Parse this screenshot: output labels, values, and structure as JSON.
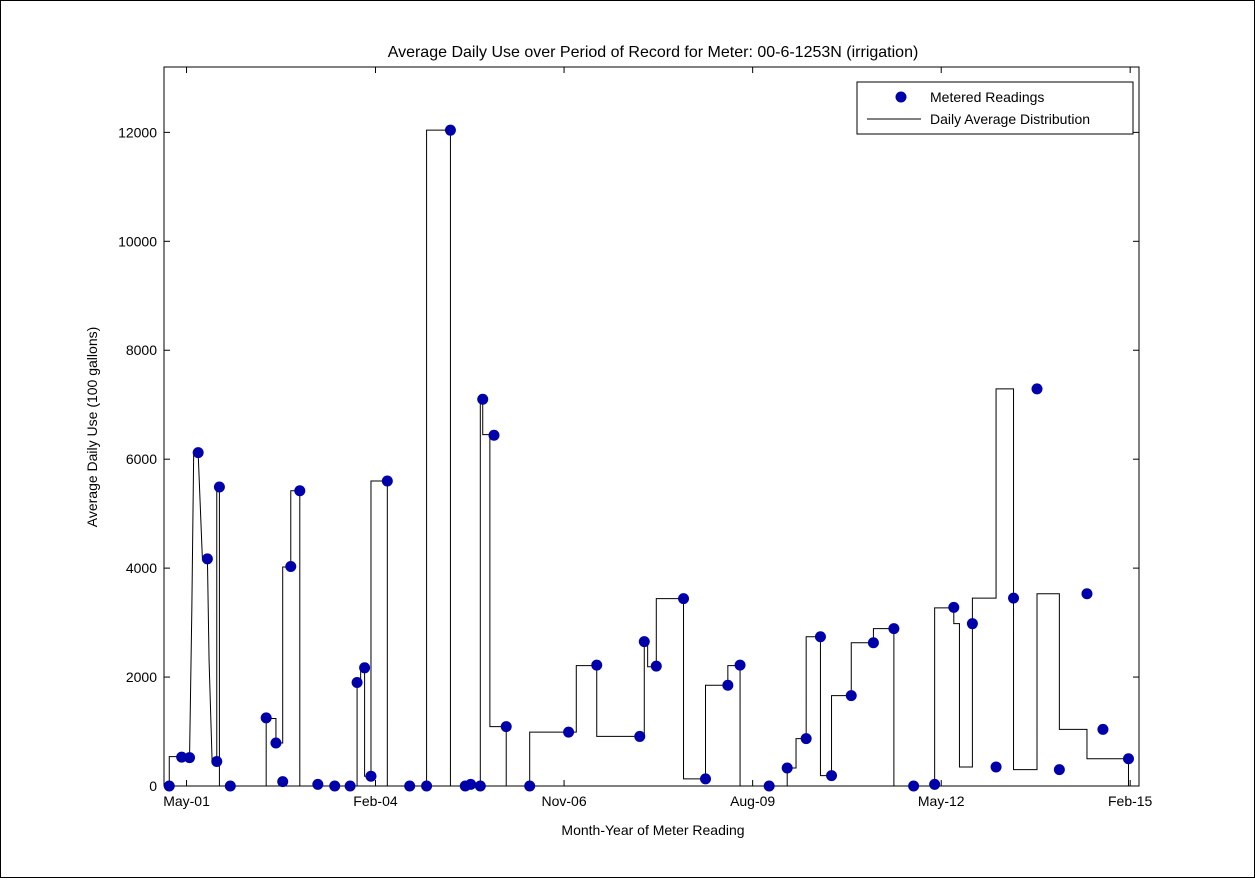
{
  "chart_data": {
    "type": "line",
    "title": "Average Daily Use over Period of Record for Meter: 00-6-1253N (irrigation)",
    "xlabel": "Month-Year of Meter Reading",
    "ylabel": "Average Daily Use (100 gallons)",
    "x_axis": "date",
    "xlim": [
      "2001-01-01",
      "2015-03-20"
    ],
    "ylim": [
      0,
      13200
    ],
    "yticks": [
      0,
      2000,
      4000,
      6000,
      8000,
      10000,
      12000
    ],
    "xticks": [
      {
        "date": "2001-05-01",
        "label": "May-01"
      },
      {
        "date": "2004-02-01",
        "label": "Feb-04"
      },
      {
        "date": "2006-11-01",
        "label": "Nov-06"
      },
      {
        "date": "2009-08-01",
        "label": "Aug-09"
      },
      {
        "date": "2012-05-01",
        "label": "May-12"
      },
      {
        "date": "2015-02-01",
        "label": "Feb-15"
      }
    ],
    "grid": false,
    "legend_position": "top-right",
    "colors": {
      "marker": "#0000aa",
      "line": "#000000"
    },
    "series": [
      {
        "name": "Metered Readings",
        "kind": "markers",
        "points": [
          [
            "2001-01-29",
            0
          ],
          [
            "2001-04-05",
            530
          ],
          [
            "2001-05-17",
            520
          ],
          [
            "2001-07-02",
            6120
          ],
          [
            "2001-08-20",
            4170
          ],
          [
            "2001-10-09",
            450
          ],
          [
            "2001-10-23",
            5490
          ],
          [
            "2001-12-20",
            0
          ],
          [
            "2002-06-29",
            1250
          ],
          [
            "2002-08-20",
            790
          ],
          [
            "2002-09-25",
            80
          ],
          [
            "2002-11-07",
            4030
          ],
          [
            "2002-12-25",
            5420
          ],
          [
            "2003-03-31",
            30
          ],
          [
            "2003-06-29",
            0
          ],
          [
            "2003-09-19",
            0
          ],
          [
            "2003-10-26",
            1900
          ],
          [
            "2003-12-05",
            2170
          ],
          [
            "2004-01-08",
            180
          ],
          [
            "2004-04-04",
            5600
          ],
          [
            "2004-08-01",
            0
          ],
          [
            "2004-10-30",
            0
          ],
          [
            "2005-03-06",
            12040
          ],
          [
            "2005-05-24",
            0
          ],
          [
            "2005-06-22",
            30
          ],
          [
            "2005-08-12",
            0
          ],
          [
            "2005-08-25",
            7100
          ],
          [
            "2005-10-24",
            6440
          ],
          [
            "2005-12-28",
            1090
          ],
          [
            "2006-05-02",
            0
          ],
          [
            "2006-11-25",
            990
          ],
          [
            "2007-04-24",
            2220
          ],
          [
            "2007-12-09",
            910
          ],
          [
            "2008-01-02",
            2650
          ],
          [
            "2008-03-06",
            2200
          ],
          [
            "2008-07-29",
            3440
          ],
          [
            "2008-11-23",
            130
          ],
          [
            "2009-03-22",
            1850
          ],
          [
            "2009-05-26",
            2220
          ],
          [
            "2009-10-28",
            0
          ],
          [
            "2010-02-01",
            330
          ],
          [
            "2010-05-13",
            870
          ],
          [
            "2010-07-28",
            2740
          ],
          [
            "2010-09-25",
            190
          ],
          [
            "2011-01-08",
            1660
          ],
          [
            "2011-05-06",
            2630
          ],
          [
            "2011-08-23",
            2890
          ],
          [
            "2011-12-06",
            0
          ],
          [
            "2012-03-27",
            30
          ],
          [
            "2012-07-07",
            3280
          ],
          [
            "2012-10-14",
            2980
          ],
          [
            "2013-02-17",
            350
          ],
          [
            "2013-05-21",
            3450
          ],
          [
            "2013-09-23",
            7290
          ],
          [
            "2014-01-20",
            300
          ],
          [
            "2014-06-16",
            3530
          ],
          [
            "2014-09-09",
            1040
          ],
          [
            "2015-01-23",
            500
          ]
        ]
      },
      {
        "name": "Daily Average Distribution",
        "kind": "line",
        "points": [
          [
            "2001-01-29",
            0
          ],
          [
            "2001-01-29",
            540
          ],
          [
            "2001-04-05",
            540
          ],
          [
            "2001-04-05",
            530
          ],
          [
            "2001-05-17",
            530
          ],
          [
            "2001-05-29",
            3200
          ],
          [
            "2001-06-08",
            6100
          ],
          [
            "2001-07-02",
            6100
          ],
          [
            "2001-07-24",
            4200
          ],
          [
            "2001-08-20",
            4200
          ],
          [
            "2001-08-29",
            2300
          ],
          [
            "2001-09-14",
            470
          ],
          [
            "2001-10-09",
            470
          ],
          [
            "2001-10-09",
            5500
          ],
          [
            "2001-10-23",
            5500
          ],
          [
            "2001-10-23",
            0
          ],
          [
            "2001-12-20",
            0
          ],
          [
            "2002-06-29",
            0
          ],
          [
            "2002-06-29",
            1240
          ],
          [
            "2002-08-20",
            1240
          ],
          [
            "2002-08-20",
            790
          ],
          [
            "2002-09-25",
            790
          ],
          [
            "2002-09-25",
            4020
          ],
          [
            "2002-11-07",
            4020
          ],
          [
            "2002-11-07",
            5420
          ],
          [
            "2002-12-25",
            5420
          ],
          [
            "2002-12-25",
            0
          ],
          [
            "2003-10-26",
            0
          ],
          [
            "2003-10-26",
            1890
          ],
          [
            "2003-11-14",
            1890
          ],
          [
            "2003-11-14",
            2160
          ],
          [
            "2003-12-05",
            2160
          ],
          [
            "2003-12-05",
            180
          ],
          [
            "2004-01-08",
            180
          ],
          [
            "2004-01-08",
            5600
          ],
          [
            "2004-04-04",
            5600
          ],
          [
            "2004-04-04",
            0
          ],
          [
            "2004-10-30",
            0
          ],
          [
            "2004-10-30",
            6000
          ],
          [
            "2004-10-30",
            12040
          ],
          [
            "2005-03-06",
            12040
          ],
          [
            "2005-03-06",
            0
          ],
          [
            "2005-08-12",
            0
          ],
          [
            "2005-08-12",
            7100
          ],
          [
            "2005-08-25",
            7100
          ],
          [
            "2005-08-25",
            6450
          ],
          [
            "2005-10-02",
            6450
          ],
          [
            "2005-10-02",
            1090
          ],
          [
            "2005-12-28",
            1090
          ],
          [
            "2005-12-28",
            0
          ],
          [
            "2006-05-02",
            0
          ],
          [
            "2006-05-02",
            990
          ],
          [
            "2006-11-25",
            990
          ],
          [
            "2007-01-05",
            990
          ],
          [
            "2007-01-05",
            2210
          ],
          [
            "2007-04-24",
            2210
          ],
          [
            "2007-04-24",
            910
          ],
          [
            "2008-01-02",
            910
          ],
          [
            "2008-01-02",
            2650
          ],
          [
            "2008-01-20",
            2650
          ],
          [
            "2008-01-20",
            2190
          ],
          [
            "2008-03-06",
            2190
          ],
          [
            "2008-03-06",
            3440
          ],
          [
            "2008-07-29",
            3440
          ],
          [
            "2008-07-29",
            130
          ],
          [
            "2008-11-23",
            130
          ],
          [
            "2008-11-23",
            1850
          ],
          [
            "2009-03-22",
            1850
          ],
          [
            "2009-03-22",
            2210
          ],
          [
            "2009-05-26",
            2210
          ],
          [
            "2009-05-26",
            0
          ],
          [
            "2010-02-01",
            0
          ],
          [
            "2010-02-01",
            330
          ],
          [
            "2010-03-20",
            330
          ],
          [
            "2010-03-20",
            870
          ],
          [
            "2010-05-13",
            870
          ],
          [
            "2010-05-13",
            2740
          ],
          [
            "2010-07-28",
            2740
          ],
          [
            "2010-07-28",
            190
          ],
          [
            "2010-09-25",
            190
          ],
          [
            "2010-09-25",
            1660
          ],
          [
            "2011-01-08",
            1660
          ],
          [
            "2011-01-08",
            2630
          ],
          [
            "2011-05-06",
            2630
          ],
          [
            "2011-05-06",
            2890
          ],
          [
            "2011-08-23",
            2890
          ],
          [
            "2011-08-23",
            0
          ],
          [
            "2012-03-27",
            0
          ],
          [
            "2012-03-27",
            3270
          ],
          [
            "2012-07-07",
            3270
          ],
          [
            "2012-07-07",
            2980
          ],
          [
            "2012-08-06",
            2980
          ],
          [
            "2012-08-06",
            350
          ],
          [
            "2012-10-14",
            350
          ],
          [
            "2012-10-14",
            3450
          ],
          [
            "2013-02-17",
            3450
          ],
          [
            "2013-02-17",
            7290
          ],
          [
            "2013-05-21",
            7290
          ],
          [
            "2013-05-21",
            300
          ],
          [
            "2013-09-23",
            300
          ],
          [
            "2013-09-23",
            3530
          ],
          [
            "2014-01-20",
            3530
          ],
          [
            "2014-01-20",
            1040
          ],
          [
            "2014-06-16",
            1040
          ],
          [
            "2014-06-16",
            500
          ],
          [
            "2014-09-09",
            500
          ],
          [
            "2014-09-09",
            500
          ],
          [
            "2015-01-23",
            500
          ],
          [
            "2015-01-23",
            0
          ]
        ]
      }
    ]
  }
}
